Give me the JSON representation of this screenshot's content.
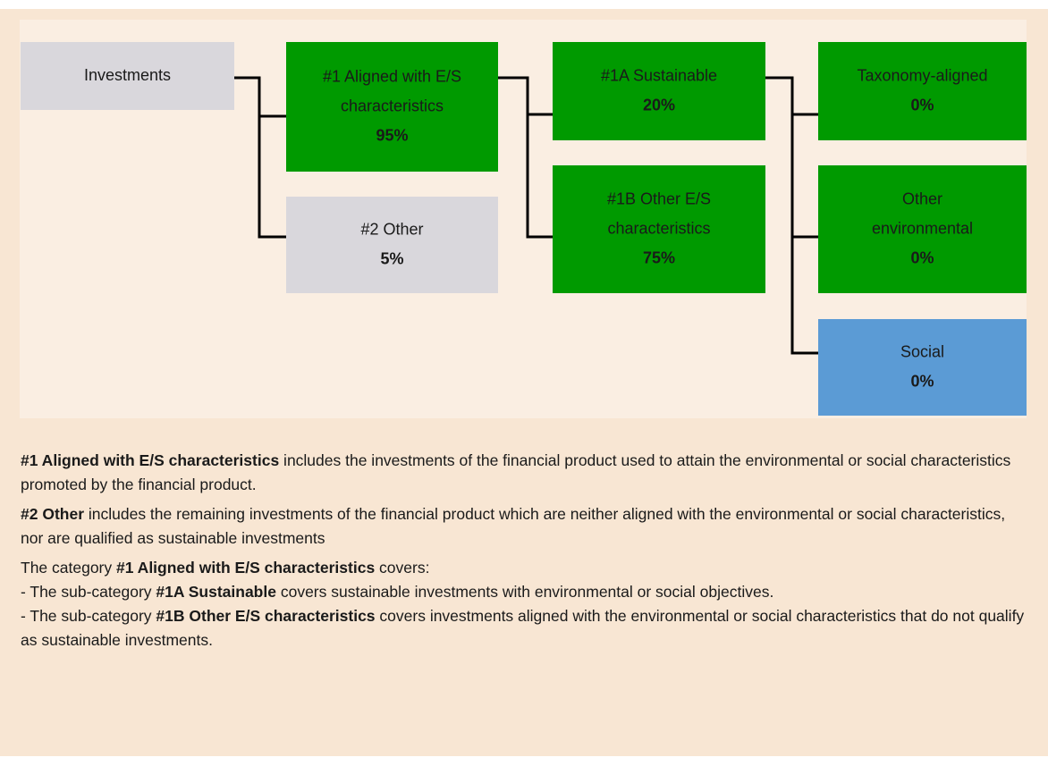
{
  "nodes": [
    {
      "label": [
        "Investments"
      ]
    },
    {
      "label": [
        "#1 Aligned with E/S",
        "characteristics"
      ],
      "value": "95%"
    },
    {
      "label": [
        "#2 Other"
      ],
      "value": "5%"
    },
    {
      "label": [
        "#1A Sustainable"
      ],
      "value": "20%"
    },
    {
      "label": [
        "#1B Other E/S",
        "characteristics"
      ],
      "value": "75%"
    },
    {
      "label": [
        "Taxonomy-aligned"
      ],
      "value": "0%"
    },
    {
      "label": [
        "Other",
        "environmental"
      ],
      "value": "0%"
    },
    {
      "label": [
        "Social"
      ],
      "value": "0%"
    }
  ],
  "notes": [
    [
      [
        {
          "text": "#1 Aligned with E/S characteristics",
          "bold": true
        },
        {
          "text": " includes the investments of the financial product used to attain the environmental or social characteristics promoted by the financial product.",
          "bold": false
        }
      ]
    ],
    [
      [
        {
          "text": "#2 Other",
          "bold": true
        },
        {
          "text": " includes the remaining investments of the financial product which are neither aligned with the environmental or social characteristics, nor are qualified as sustainable investments",
          "bold": false
        }
      ]
    ],
    [
      [
        {
          "text": "The category ",
          "bold": false
        },
        {
          "text": "#1 Aligned with E/S characteristics",
          "bold": true
        },
        {
          "text": " covers:",
          "bold": false
        }
      ],
      [
        {
          "text": "- The sub-category ",
          "bold": false
        },
        {
          "text": "#1A Sustainable",
          "bold": true
        },
        {
          "text": " covers sustainable investments with environmental or social objectives.",
          "bold": false
        }
      ],
      [
        {
          "text": "- The sub-category ",
          "bold": false
        },
        {
          "text": "#1B Other E/S characteristics",
          "bold": true
        },
        {
          "text": " covers investments aligned with the environmental or social characteristics that do not qualify as sustainable investments.",
          "bold": false
        }
      ]
    ]
  ]
}
